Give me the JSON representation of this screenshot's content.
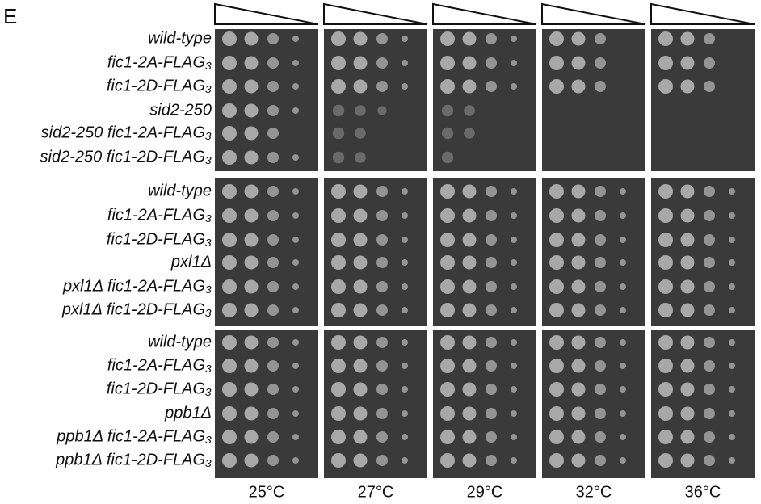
{
  "panel_label": "E",
  "groups": [
    {
      "strains": [
        "wild-type",
        "fic1-2A-FLAG₃",
        "fic1-2D-FLAG₃",
        "sid2-250",
        "sid2-250 fic1-2A-FLAG₃",
        "sid2-250 fic1-2D-FLAG₃"
      ]
    },
    {
      "strains": [
        "wild-type",
        "fic1-2A-FLAG₃",
        "fic1-2D-FLAG₃",
        "pxl1Δ",
        "pxl1Δ fic1-2A-FLAG₃",
        "pxl1Δ fic1-2D-FLAG₃"
      ]
    },
    {
      "strains": [
        "wild-type",
        "fic1-2A-FLAG₃",
        "fic1-2D-FLAG₃",
        "ppb1Δ",
        "ppb1Δ fic1-2A-FLAG₃",
        "ppb1Δ fic1-2D-FLAG₃"
      ]
    }
  ],
  "temperatures": [
    "25°C",
    "27°C",
    "29°C",
    "32°C",
    "36°C"
  ]
}
